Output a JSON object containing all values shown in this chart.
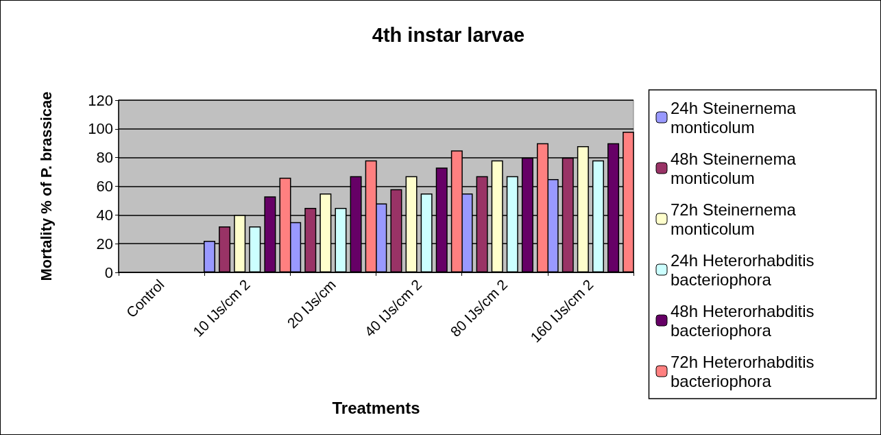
{
  "chart_data": {
    "type": "bar",
    "title": "4th instar larvae",
    "xlabel": "Treatments",
    "ylabel": "Mortality % of P. brassicae",
    "categories": [
      "Control",
      "10 IJs/cm 2",
      "20 IJs/cm",
      "40 IJs/cm 2",
      "80 IJs/cm 2",
      "160 IJs/cm 2"
    ],
    "series": [
      {
        "name": "24h Steinernema monticolum",
        "color": "#9999ff",
        "values": [
          0,
          22,
          35,
          48,
          55,
          65
        ]
      },
      {
        "name": "48h Steinernema monticolum",
        "color": "#993366",
        "values": [
          0,
          32,
          45,
          58,
          67,
          80
        ]
      },
      {
        "name": "72h Steinernema monticolum",
        "color": "#ffffcc",
        "values": [
          0,
          40,
          55,
          67,
          78,
          88
        ]
      },
      {
        "name": "24h Heterorhabditis bacteriophora",
        "color": "#ccffff",
        "values": [
          0,
          32,
          45,
          55,
          67,
          78
        ]
      },
      {
        "name": "48h Heterorhabditis bacteriophora",
        "color": "#660066",
        "values": [
          0,
          53,
          67,
          73,
          80,
          90
        ]
      },
      {
        "name": "72h Heterorhabditis bacteriophora",
        "color": "#ff8080",
        "values": [
          0,
          66,
          78,
          85,
          90,
          98
        ]
      }
    ],
    "ylim": [
      0,
      120
    ],
    "yticks": [
      0,
      20,
      40,
      60,
      80,
      100,
      120
    ],
    "grid": "y",
    "legend": "right"
  }
}
